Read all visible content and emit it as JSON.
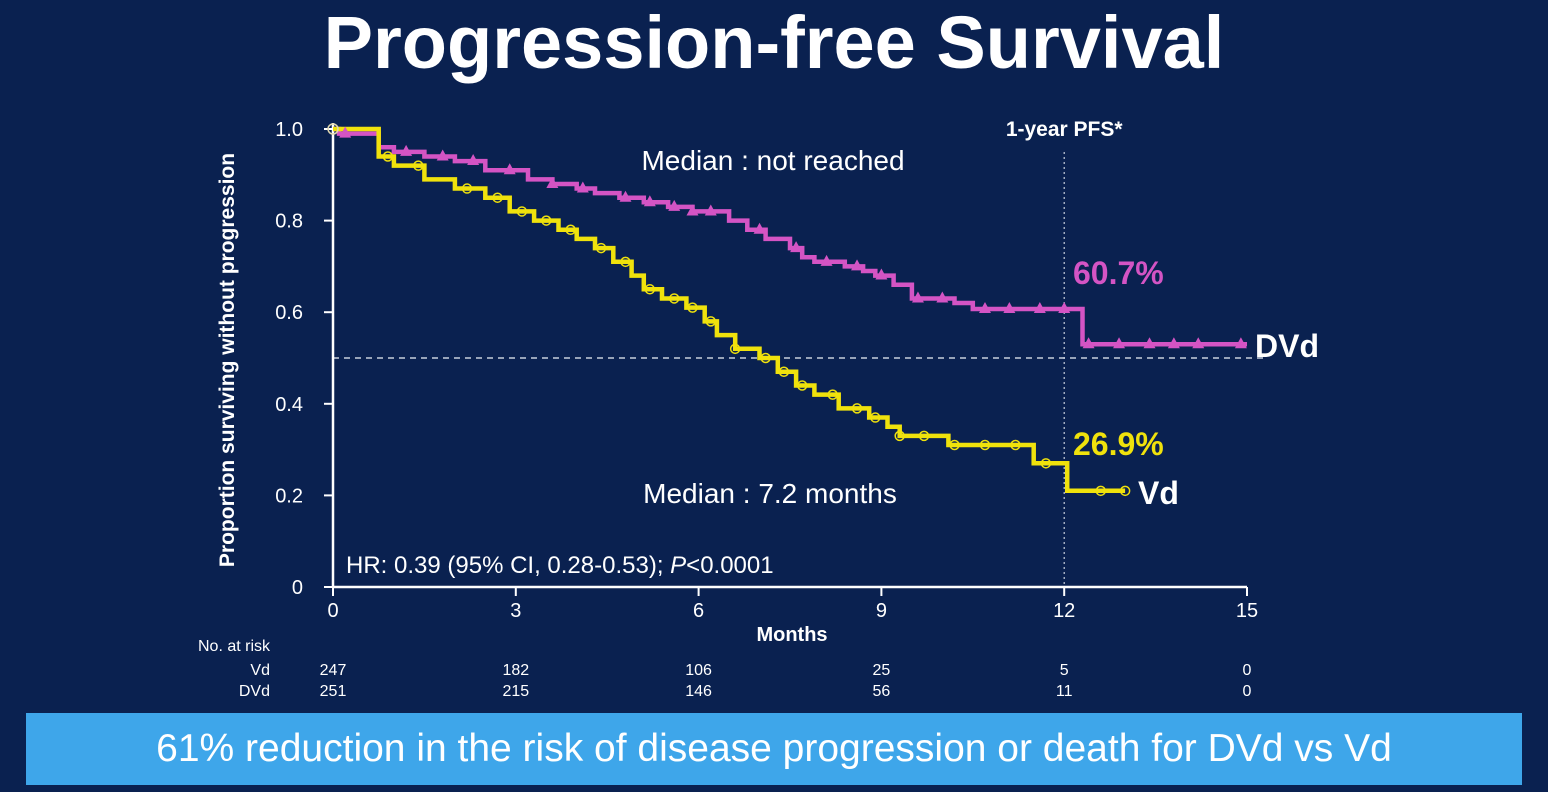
{
  "title": "Progression-free Survival",
  "banner": "61% reduction in the risk of disease progression or death for DVd vs Vd",
  "colors": {
    "background": "#0a2150",
    "dvd": "#d454c4",
    "vd": "#f0e20c",
    "banner": "#3ea6ea",
    "text": "#ffffff"
  },
  "chart_data": {
    "type": "line",
    "subtype": "kaplan-meier",
    "xlabel": "Months",
    "ylabel": "Proportion surviving without progression",
    "xlim": [
      0,
      15
    ],
    "ylim": [
      0,
      1.0
    ],
    "x_ticks": [
      "0",
      "3",
      "6",
      "9",
      "12",
      "15"
    ],
    "y_ticks": [
      "0",
      "0.2",
      "0.4",
      "0.6",
      "0.8",
      "1.0"
    ],
    "reference_lines": {
      "median_y": 0.5,
      "landmark_x": 12,
      "landmark_label": "1-year PFS*"
    },
    "annotations": {
      "median_dvd": "Median : not reached",
      "median_vd": "Median : 7.2 months",
      "hr_prefix": "HR: 0.39 (95% CI, 0.28-0.53); ",
      "hr_p": "P",
      "hr_suffix": "<0.0001"
    },
    "series": [
      {
        "name": "DVd",
        "one_year_pfs": "60.7%",
        "x": [
          0,
          0.1,
          0.7,
          0.75,
          1.0,
          1.5,
          2.0,
          2.5,
          3.2,
          3.6,
          4.0,
          4.3,
          4.7,
          5.1,
          5.5,
          5.9,
          6.4,
          6.5,
          6.8,
          7.1,
          7.5,
          7.7,
          7.9,
          8.4,
          8.7,
          8.9,
          9.2,
          9.5,
          10.2,
          10.5,
          12.2,
          12.3,
          15.0
        ],
        "y": [
          1.0,
          0.99,
          0.99,
          0.96,
          0.95,
          0.94,
          0.93,
          0.91,
          0.89,
          0.88,
          0.87,
          0.86,
          0.85,
          0.84,
          0.83,
          0.82,
          0.82,
          0.8,
          0.78,
          0.76,
          0.74,
          0.72,
          0.71,
          0.7,
          0.69,
          0.68,
          0.66,
          0.63,
          0.62,
          0.607,
          0.607,
          0.53,
          0.53
        ],
        "censor_x": [
          0.2,
          1.2,
          1.8,
          2.3,
          2.9,
          3.6,
          4.1,
          4.8,
          5.2,
          5.6,
          5.9,
          6.2,
          7.0,
          7.6,
          8.1,
          8.6,
          9.0,
          9.6,
          10.0,
          10.7,
          11.1,
          11.6,
          12.0,
          12.4,
          12.9,
          13.4,
          13.8,
          14.2,
          14.9
        ]
      },
      {
        "name": "Vd",
        "one_year_pfs": "26.9%",
        "x": [
          0,
          0.7,
          0.75,
          1.0,
          1.5,
          2.0,
          2.5,
          2.9,
          3.3,
          3.7,
          4.0,
          4.3,
          4.6,
          4.9,
          5.1,
          5.4,
          5.8,
          6.1,
          6.3,
          6.6,
          7.0,
          7.3,
          7.6,
          7.9,
          8.3,
          8.8,
          9.1,
          9.3,
          10.1,
          11.4,
          11.5,
          12.0,
          12.05,
          13.0
        ],
        "y": [
          1.0,
          1.0,
          0.94,
          0.92,
          0.89,
          0.87,
          0.85,
          0.82,
          0.8,
          0.78,
          0.76,
          0.74,
          0.71,
          0.68,
          0.65,
          0.63,
          0.61,
          0.58,
          0.55,
          0.52,
          0.5,
          0.47,
          0.44,
          0.42,
          0.39,
          0.37,
          0.35,
          0.33,
          0.31,
          0.31,
          0.27,
          0.27,
          0.21,
          0.21
        ],
        "censor_x": [
          0.9,
          1.4,
          2.2,
          2.7,
          3.1,
          3.5,
          3.9,
          4.4,
          4.8,
          5.2,
          5.6,
          5.9,
          6.2,
          6.6,
          7.1,
          7.4,
          7.7,
          8.2,
          8.6,
          8.9,
          9.3,
          9.7,
          10.2,
          10.7,
          11.2,
          11.7,
          12.6,
          13.0
        ]
      }
    ],
    "risk_table": {
      "header": "No. at risk",
      "rows": [
        {
          "label": "Vd",
          "values": [
            "247",
            "182",
            "106",
            "25",
            "5",
            "0"
          ]
        },
        {
          "label": "DVd",
          "values": [
            "251",
            "215",
            "146",
            "56",
            "11",
            "0"
          ]
        }
      ]
    }
  }
}
